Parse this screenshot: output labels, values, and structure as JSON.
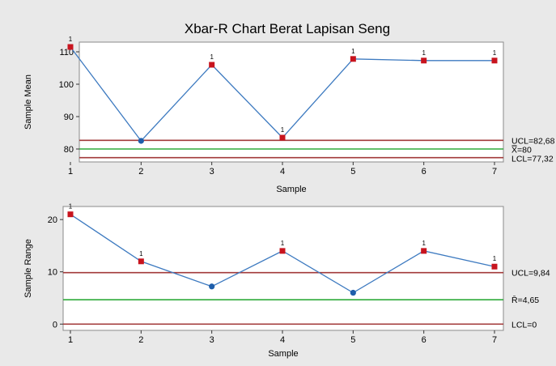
{
  "chart_data": {
    "title": "Xbar-R Chart Berat Lapisan Seng",
    "charts": [
      {
        "type": "line",
        "name": "xbar",
        "ylabel": "Sample Mean",
        "xlabel": "Sample",
        "x": [
          1,
          2,
          3,
          4,
          5,
          6,
          7
        ],
        "values": [
          111.5,
          82.5,
          106,
          83.5,
          107.8,
          107.3,
          107.3
        ],
        "out_of_control": [
          true,
          false,
          true,
          true,
          true,
          true,
          true
        ],
        "ylim": [
          76,
          113
        ],
        "yticks": [
          80,
          90,
          100,
          110
        ],
        "control_lines": [
          {
            "key": "ucl",
            "value": 82.68,
            "label": "UCL=82,68",
            "color": "#a23a3a"
          },
          {
            "key": "center",
            "value": 80,
            "label": "X̿=80",
            "color": "#2eaa3a"
          },
          {
            "key": "lcl",
            "value": 77.32,
            "label": "LCL=77,32",
            "color": "#a23a3a"
          }
        ]
      },
      {
        "type": "line",
        "name": "range",
        "ylabel": "Sample Range",
        "xlabel": "Sample",
        "x": [
          1,
          2,
          3,
          4,
          5,
          6,
          7
        ],
        "values": [
          21,
          12,
          7.2,
          14,
          6,
          14,
          11
        ],
        "out_of_control": [
          true,
          true,
          false,
          true,
          false,
          true,
          true
        ],
        "ylim": [
          -1.2,
          22.5
        ],
        "yticks": [
          0,
          10,
          20
        ],
        "control_lines": [
          {
            "key": "ucl",
            "value": 9.84,
            "label": "UCL=9,84",
            "color": "#a23a3a"
          },
          {
            "key": "center",
            "value": 4.65,
            "label": "R̄=4,65",
            "color": "#2eaa3a"
          },
          {
            "key": "lcl",
            "value": 0,
            "label": "LCL=0",
            "color": "#a23a3a"
          }
        ]
      }
    ],
    "colors": {
      "series_line": "#3d7ac0",
      "in_control_point": "#1e5eab",
      "out_of_control_point": "#c8141e",
      "flag_marker": "1"
    }
  }
}
